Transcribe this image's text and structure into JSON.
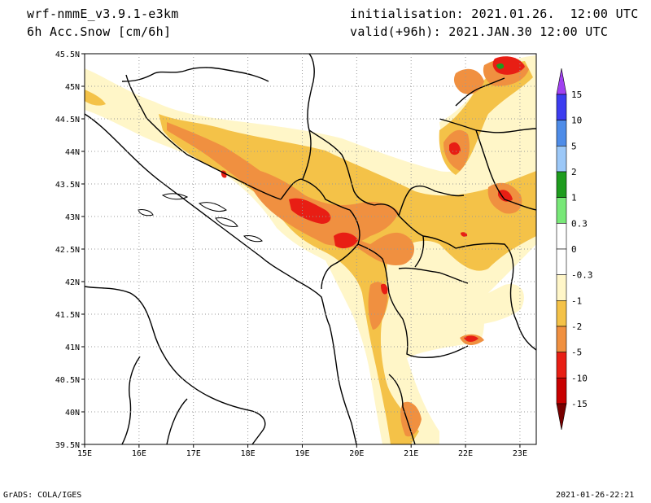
{
  "header": {
    "model": "wrf-nmmE_v3.9.1-e3km",
    "field": "6h Acc.Snow [cm/6h]",
    "init": "initialisation: 2021.01.26.  12:00 UTC",
    "valid": "valid(+96h): 2021.JAN.30 12:00 UTC"
  },
  "footer": {
    "left": "GrADS: COLA/IGES",
    "right": "2021-01-26-22:21"
  },
  "map": {
    "lon_ticks": [
      "15E",
      "16E",
      "17E",
      "18E",
      "19E",
      "20E",
      "21E",
      "22E",
      "23E"
    ],
    "lat_ticks": [
      "45.5N",
      "45N",
      "44.5N",
      "44N",
      "43.5N",
      "43N",
      "42.5N",
      "42N",
      "41.5N",
      "41N",
      "40.5N",
      "40N",
      "39.5N"
    ],
    "lon_range": [
      15,
      23.3
    ],
    "lat_range": [
      39.5,
      45.5
    ]
  },
  "colorbar": {
    "labels": [
      "15",
      "10",
      "5",
      "2",
      "1",
      "0.3",
      "0",
      "-0.3",
      "-1",
      "-2",
      "-5",
      "-10",
      "-15"
    ],
    "colors": [
      "#3c3cf0",
      "#4e8ce8",
      "#9cc8f8",
      "#1e9c1e",
      "#78e878",
      "#ffffff",
      "#ffffff",
      "#fff6c8",
      "#f4c248",
      "#f09040",
      "#e81e14",
      "#c80000",
      "#980000"
    ],
    "top_arrow_color": "#a040f0",
    "bottom_arrow_color": "#780000"
  },
  "colors": {
    "pale": "#fff6c8",
    "yellow": "#f4c248",
    "orange": "#f09040",
    "red": "#e81e14",
    "green": "#1e9c1e"
  }
}
